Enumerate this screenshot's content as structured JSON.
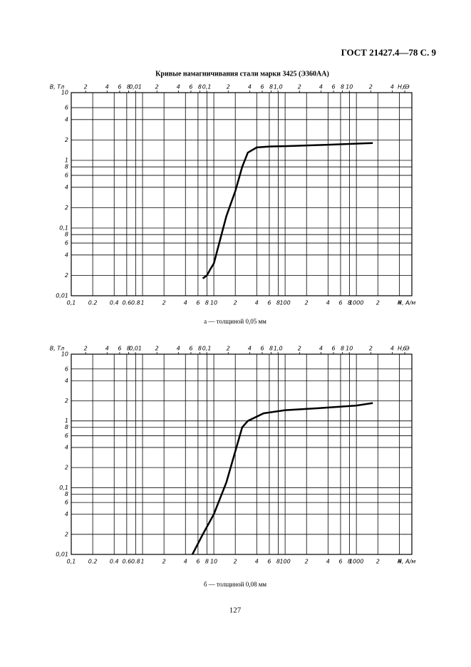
{
  "header": "ГОСТ 21427.4—78 С. 9",
  "title": "Кривые намагничивания стали марки 3425 (Э360АА)",
  "chart_data": [
    {
      "type": "line",
      "x_label": "Н, А/м",
      "x2_label": "Н, Э",
      "y_label": "В, Тл",
      "caption": "а — толщиной 0,05 мм",
      "log_scale": true,
      "grid": true,
      "color": "#000000",
      "x": [
        7,
        8,
        9,
        10,
        15,
        20,
        25,
        30,
        40,
        60,
        100,
        400,
        1700
      ],
      "values": [
        0.018,
        0.02,
        0.025,
        0.03,
        0.15,
        0.35,
        0.8,
        1.3,
        1.55,
        1.6,
        1.62,
        1.7,
        1.8
      ],
      "xlim": [
        0.1,
        6000
      ],
      "xticks": [
        {
          "value": 0.1,
          "label": "0,1"
        },
        0.2,
        0.4,
        0.6,
        0.8,
        1,
        2,
        4,
        6,
        8,
        10,
        {
          "value": 20,
          "label": "2"
        },
        {
          "value": 40,
          "label": "4"
        },
        {
          "value": 60,
          "label": "6"
        },
        {
          "value": 80,
          "label": "8"
        },
        100,
        {
          "value": 200,
          "label": "2"
        },
        {
          "value": 400,
          "label": "4"
        },
        {
          "value": 600,
          "label": "6"
        },
        {
          "value": 800,
          "label": "8"
        },
        1000,
        {
          "value": 2000,
          "label": "2"
        },
        {
          "value": 4000,
          "label": "4"
        }
      ],
      "x2lim": [
        0.001257,
        75.4
      ],
      "x2ticks": [
        {
          "value": 0.002,
          "label": "2"
        },
        {
          "value": 0.004,
          "label": "4"
        },
        {
          "value": 0.006,
          "label": "6"
        },
        {
          "value": 0.008,
          "label": "8"
        },
        {
          "value": 0.01,
          "label": "0,01"
        },
        {
          "value": 0.02,
          "label": "2"
        },
        {
          "value": 0.04,
          "label": "4"
        },
        {
          "value": 0.06,
          "label": "6"
        },
        {
          "value": 0.08,
          "label": "8"
        },
        {
          "value": 0.1,
          "label": "0,1"
        },
        {
          "value": 0.2,
          "label": "2"
        },
        {
          "value": 0.4,
          "label": "4"
        },
        {
          "value": 0.6,
          "label": "6"
        },
        {
          "value": 0.8,
          "label": "8"
        },
        {
          "value": 1,
          "label": "1,0"
        },
        2,
        4,
        6,
        8,
        10,
        {
          "value": 20,
          "label": "2"
        },
        {
          "value": 40,
          "label": "4"
        },
        {
          "value": 60,
          "label": "6"
        }
      ],
      "ylim": [
        0.01,
        10
      ],
      "yticks": [
        {
          "value": 0.01,
          "label": "0,01"
        },
        {
          "value": 0.02,
          "label": "2"
        },
        {
          "value": 0.04,
          "label": "4"
        },
        {
          "value": 0.06,
          "label": "6"
        },
        {
          "value": 0.08,
          "label": "8"
        },
        {
          "value": 0.1,
          "label": "0,1"
        },
        {
          "value": 0.2,
          "label": "2"
        },
        {
          "value": 0.4,
          "label": "4"
        },
        {
          "value": 0.6,
          "label": "6"
        },
        {
          "value": 0.8,
          "label": "8"
        },
        1,
        2,
        4,
        6,
        10
      ]
    },
    {
      "type": "line",
      "x_label": "Н, А/м",
      "x2_label": "Н, Э",
      "y_label": "В, Тл",
      "caption": "б — толщиной 0,08 мм",
      "log_scale": true,
      "grid": true,
      "color": "#000000",
      "x": [
        5,
        7,
        10,
        15,
        20,
        25,
        30,
        50,
        100,
        300,
        1000,
        1700
      ],
      "values": [
        0.01,
        0.02,
        0.04,
        0.12,
        0.35,
        0.8,
        1.0,
        1.3,
        1.45,
        1.55,
        1.7,
        1.85
      ],
      "xlim": [
        0.1,
        6000
      ],
      "xticks": [
        {
          "value": 0.1,
          "label": "0,1"
        },
        0.2,
        0.4,
        0.6,
        0.8,
        1,
        2,
        4,
        6,
        8,
        10,
        {
          "value": 20,
          "label": "2"
        },
        {
          "value": 40,
          "label": "4"
        },
        {
          "value": 60,
          "label": "6"
        },
        {
          "value": 80,
          "label": "8"
        },
        100,
        {
          "value": 200,
          "label": "2"
        },
        {
          "value": 400,
          "label": "4"
        },
        {
          "value": 600,
          "label": "6"
        },
        {
          "value": 800,
          "label": "8"
        },
        1000,
        {
          "value": 2000,
          "label": "2"
        },
        {
          "value": 4000,
          "label": "4"
        }
      ],
      "x2lim": [
        0.001257,
        75.4
      ],
      "x2ticks": [
        {
          "value": 0.002,
          "label": "2"
        },
        {
          "value": 0.004,
          "label": "4"
        },
        {
          "value": 0.006,
          "label": "6"
        },
        {
          "value": 0.008,
          "label": "8"
        },
        {
          "value": 0.01,
          "label": "0,01"
        },
        {
          "value": 0.02,
          "label": "2"
        },
        {
          "value": 0.04,
          "label": "4"
        },
        {
          "value": 0.06,
          "label": "6"
        },
        {
          "value": 0.08,
          "label": "8"
        },
        {
          "value": 0.1,
          "label": "0,1"
        },
        {
          "value": 0.2,
          "label": "2"
        },
        {
          "value": 0.4,
          "label": "4"
        },
        {
          "value": 0.6,
          "label": "6"
        },
        {
          "value": 0.8,
          "label": "8"
        },
        {
          "value": 1,
          "label": "1,0"
        },
        2,
        4,
        6,
        8,
        10,
        {
          "value": 20,
          "label": "2"
        },
        {
          "value": 40,
          "label": "4"
        },
        {
          "value": 60,
          "label": "6"
        }
      ],
      "ylim": [
        0.01,
        10
      ],
      "yticks": [
        {
          "value": 0.01,
          "label": "0,01"
        },
        {
          "value": 0.02,
          "label": "2"
        },
        {
          "value": 0.04,
          "label": "4"
        },
        {
          "value": 0.06,
          "label": "6"
        },
        {
          "value": 0.08,
          "label": "8"
        },
        {
          "value": 0.1,
          "label": "0,1"
        },
        {
          "value": 0.2,
          "label": "2"
        },
        {
          "value": 0.4,
          "label": "4"
        },
        {
          "value": 0.6,
          "label": "6"
        },
        {
          "value": 0.8,
          "label": "8"
        },
        1,
        2,
        4,
        6,
        10
      ]
    }
  ],
  "page_number": "127"
}
